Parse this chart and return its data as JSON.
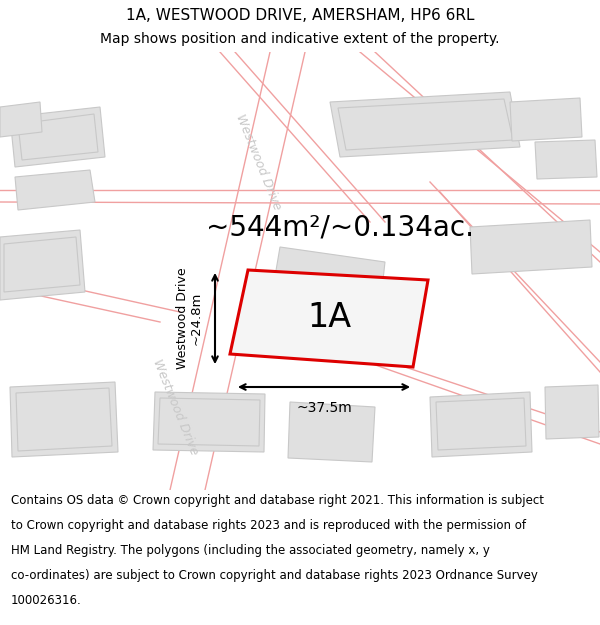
{
  "title_line1": "1A, WESTWOOD DRIVE, AMERSHAM, HP6 6RL",
  "title_line2": "Map shows position and indicative extent of the property.",
  "area_label": "~544m²/~0.134ac.",
  "label_1A": "1A",
  "dim_width": "~37.5m",
  "dim_height": "~24.8m",
  "road_label_side": "Westwood Drive",
  "road_label_top": "Westwood Drive",
  "footer_lines": [
    "Contains OS data © Crown copyright and database right 2021. This information is subject",
    "to Crown copyright and database rights 2023 and is reproduced with the permission of",
    "HM Land Registry. The polygons (including the associated geometry, namely x, y",
    "co-ordinates) are subject to Crown copyright and database rights 2023 Ordnance Survey",
    "100026316."
  ],
  "bg_color": "#ffffff",
  "map_bg": "#f2f2f2",
  "building_fill": "#e0e0e0",
  "building_edge": "#c8c8c8",
  "property_fill": "#f5f5f5",
  "property_edge": "#dd0000",
  "road_line_color": "#f0a0a0",
  "road_fill": "#ffffff",
  "title_fontsize": 11,
  "subtitle_fontsize": 10,
  "label_fontsize": 24,
  "area_fontsize": 20,
  "footer_fontsize": 8.5,
  "road_label_color": "#c8c8c8",
  "road_label_size": 9
}
